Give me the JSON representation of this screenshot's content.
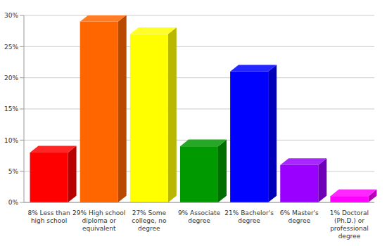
{
  "chart_data": {
    "type": "bar",
    "categories": [
      "8% Less than high school",
      "29% High school diploma or equivalent",
      "27% Some college, no degree",
      "9% Associate degree",
      "21% Bachelor's degree",
      "6% Master's degree",
      "1% Doctoral (Ph.D.) or professional degree"
    ],
    "values": [
      8,
      29,
      27,
      9,
      21,
      6,
      1
    ],
    "colors": [
      "#ff0000",
      "#ff6600",
      "#ffff00",
      "#009900",
      "#0000ff",
      "#9900ff",
      "#ff00ff"
    ],
    "ylim": [
      0,
      30
    ],
    "yticks": [
      {
        "value": 0,
        "label": "0%"
      },
      {
        "value": 5,
        "label": "5%"
      },
      {
        "value": 10,
        "label": "10%"
      },
      {
        "value": 15,
        "label": "15%"
      },
      {
        "value": 20,
        "label": "20%"
      },
      {
        "value": 25,
        "label": "25%"
      },
      {
        "value": 30,
        "label": "30%"
      }
    ],
    "grid": true
  }
}
